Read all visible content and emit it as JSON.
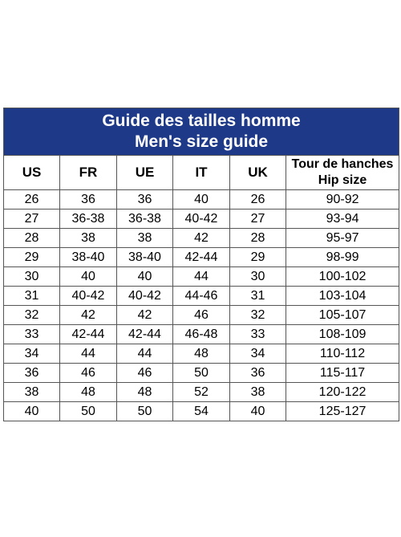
{
  "title": {
    "line1": "Guide des tailles homme",
    "line2": "Men's size guide"
  },
  "headers": [
    "US",
    "FR",
    "UE",
    "IT",
    "UK"
  ],
  "hip_header": {
    "line1": "Tour de hanches",
    "line2": "Hip size"
  },
  "rows": [
    [
      "26",
      "36",
      "36",
      "40",
      "26",
      "90-92"
    ],
    [
      "27",
      "36-38",
      "36-38",
      "40-42",
      "27",
      "93-94"
    ],
    [
      "28",
      "38",
      "38",
      "42",
      "28",
      "95-97"
    ],
    [
      "29",
      "38-40",
      "38-40",
      "42-44",
      "29",
      "98-99"
    ],
    [
      "30",
      "40",
      "40",
      "44",
      "30",
      "100-102"
    ],
    [
      "31",
      "40-42",
      "40-42",
      "44-46",
      "31",
      "103-104"
    ],
    [
      "32",
      "42",
      "42",
      "46",
      "32",
      "105-107"
    ],
    [
      "33",
      "42-44",
      "42-44",
      "46-48",
      "33",
      "108-109"
    ],
    [
      "34",
      "44",
      "44",
      "48",
      "34",
      "110-112"
    ],
    [
      "36",
      "46",
      "46",
      "50",
      "36",
      "115-117"
    ],
    [
      "38",
      "48",
      "48",
      "52",
      "38",
      "120-122"
    ],
    [
      "40",
      "50",
      "50",
      "54",
      "40",
      "125-127"
    ]
  ],
  "colors": {
    "header_background": "#1f3989",
    "header_text": "#ffffff",
    "border": "#555555"
  }
}
